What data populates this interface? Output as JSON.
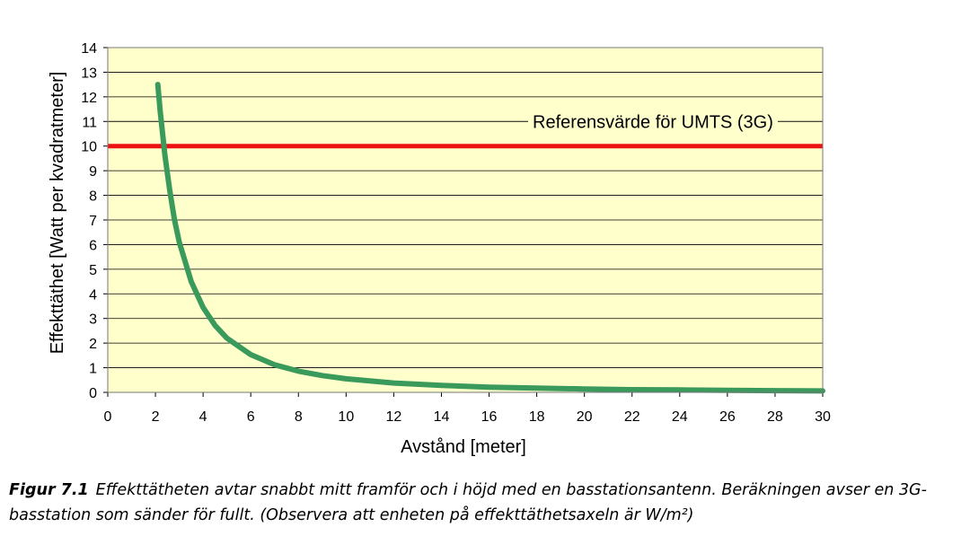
{
  "chart_data": {
    "type": "line",
    "xlabel": "Avstånd [meter]",
    "ylabel": "Effekttäthet [Watt per kvadratmeter]",
    "xlim": [
      0,
      30
    ],
    "ylim": [
      0,
      14
    ],
    "x_ticks": [
      "0",
      "2",
      "4",
      "6",
      "8",
      "10",
      "12",
      "14",
      "16",
      "18",
      "20",
      "22",
      "24",
      "26",
      "28",
      "30"
    ],
    "y_ticks": [
      "0",
      "1",
      "2",
      "3",
      "4",
      "5",
      "6",
      "7",
      "8",
      "9",
      "10",
      "11",
      "12",
      "13",
      "14"
    ],
    "grid": "horizontal",
    "background": "#ffffcc",
    "series": [
      {
        "color": "#3a9a5c",
        "x": [
          2.1,
          2.2,
          2.4,
          2.6,
          2.8,
          3,
          3.5,
          4,
          4.5,
          5,
          6,
          7,
          8,
          9,
          10,
          12,
          14,
          16,
          18,
          20,
          22,
          24,
          26,
          28,
          30
        ],
        "y": [
          12.5,
          11.4,
          9.6,
          8.2,
          7.0,
          6.1,
          4.5,
          3.45,
          2.72,
          2.2,
          1.53,
          1.12,
          0.86,
          0.68,
          0.55,
          0.38,
          0.28,
          0.21,
          0.17,
          0.14,
          0.11,
          0.1,
          0.08,
          0.07,
          0.06
        ]
      }
    ],
    "reference_line": {
      "value": 10,
      "color": "#ee1111",
      "label": "Referensvärde för UMTS (3G)"
    }
  },
  "caption": {
    "label": "Figur 7.1",
    "text": "Effekttätheten avtar snabbt mitt framför och i höjd med en basstationsantenn. Beräkningen avser en 3G-basstation som sänder för fullt. (Observera att enheten på effekttäthetsaxeln är W/m²)"
  }
}
